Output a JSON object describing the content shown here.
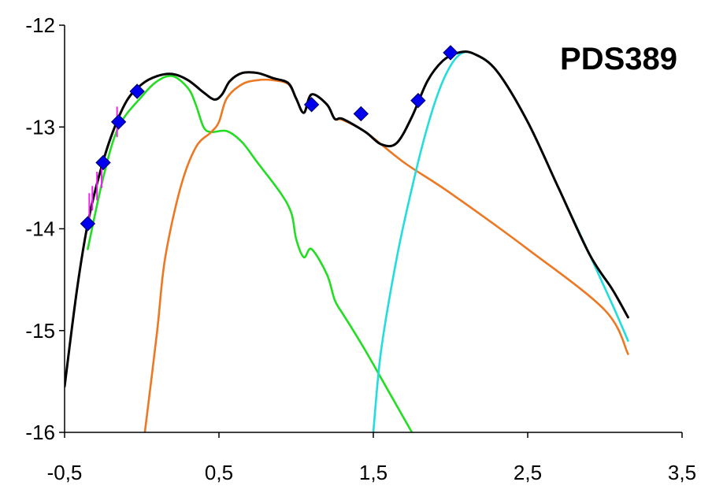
{
  "chart_data": {
    "type": "line",
    "title": "PDS389",
    "xlabel": "",
    "ylabel": "",
    "xlim": [
      -0.5,
      3.5
    ],
    "ylim": [
      -16,
      -12
    ],
    "x_ticks": [
      -0.5,
      0.5,
      1.5,
      2.5,
      3.5
    ],
    "x_tick_labels": [
      "-0,5",
      "0,5",
      "1,5",
      "2,5",
      "3,5"
    ],
    "y_ticks": [
      -12,
      -13,
      -14,
      -15,
      -16
    ],
    "y_tick_labels": [
      "-12",
      "-13",
      "-14",
      "-15",
      "-16"
    ],
    "grid": false,
    "legend": "none",
    "series": [
      {
        "type": "line",
        "color": "#22dd22",
        "points": [
          [
            -0.35,
            -14.2
          ],
          [
            -0.25,
            -13.5
          ],
          [
            -0.15,
            -13.0
          ],
          [
            0.0,
            -12.7
          ],
          [
            0.1,
            -12.55
          ],
          [
            0.2,
            -12.5
          ],
          [
            0.3,
            -12.62
          ],
          [
            0.35,
            -12.78
          ],
          [
            0.4,
            -13.0
          ],
          [
            0.45,
            -13.05
          ],
          [
            0.55,
            -13.04
          ],
          [
            0.65,
            -13.15
          ],
          [
            0.75,
            -13.35
          ],
          [
            0.9,
            -13.65
          ],
          [
            0.97,
            -13.85
          ],
          [
            1.0,
            -14.1
          ],
          [
            1.05,
            -14.28
          ],
          [
            1.1,
            -14.2
          ],
          [
            1.2,
            -14.45
          ],
          [
            1.25,
            -14.7
          ],
          [
            1.3,
            -14.83
          ],
          [
            1.35,
            -14.95
          ],
          [
            1.45,
            -15.2
          ],
          [
            1.6,
            -15.6
          ],
          [
            1.75,
            -16.0
          ]
        ]
      },
      {
        "type": "line",
        "color": "#ee7722",
        "points": [
          [
            0.02,
            -16.0
          ],
          [
            0.1,
            -15.0
          ],
          [
            0.15,
            -14.3
          ],
          [
            0.25,
            -13.6
          ],
          [
            0.35,
            -13.2
          ],
          [
            0.45,
            -13.05
          ],
          [
            0.5,
            -12.95
          ],
          [
            0.55,
            -12.72
          ],
          [
            0.65,
            -12.58
          ],
          [
            0.75,
            -12.54
          ],
          [
            0.85,
            -12.54
          ],
          [
            0.95,
            -12.58
          ],
          [
            1.0,
            -12.72
          ],
          [
            1.05,
            -12.86
          ],
          [
            1.1,
            -12.68
          ],
          [
            1.2,
            -12.78
          ],
          [
            1.25,
            -12.92
          ],
          [
            1.3,
            -12.93
          ],
          [
            1.45,
            -13.05
          ],
          [
            1.7,
            -13.35
          ],
          [
            2.0,
            -13.65
          ],
          [
            2.5,
            -14.2
          ],
          [
            3.0,
            -14.8
          ],
          [
            3.15,
            -15.23
          ]
        ]
      },
      {
        "type": "line",
        "color": "#22dddd",
        "points": [
          [
            1.5,
            -16.0
          ],
          [
            1.55,
            -15.2
          ],
          [
            1.65,
            -14.3
          ],
          [
            1.75,
            -13.6
          ],
          [
            1.85,
            -13.0
          ],
          [
            1.95,
            -12.55
          ],
          [
            2.05,
            -12.3
          ],
          [
            2.15,
            -12.28
          ],
          [
            2.3,
            -12.45
          ],
          [
            2.5,
            -12.95
          ],
          [
            2.7,
            -13.6
          ],
          [
            2.9,
            -14.25
          ],
          [
            3.05,
            -14.75
          ],
          [
            3.15,
            -15.1
          ]
        ]
      },
      {
        "type": "line",
        "color": "#000000",
        "points": [
          [
            -0.5,
            -15.55
          ],
          [
            -0.42,
            -14.6
          ],
          [
            -0.35,
            -13.95
          ],
          [
            -0.28,
            -13.5
          ],
          [
            -0.2,
            -13.1
          ],
          [
            -0.1,
            -12.75
          ],
          [
            0.0,
            -12.58
          ],
          [
            0.1,
            -12.5
          ],
          [
            0.2,
            -12.48
          ],
          [
            0.3,
            -12.54
          ],
          [
            0.4,
            -12.66
          ],
          [
            0.47,
            -12.73
          ],
          [
            0.52,
            -12.68
          ],
          [
            0.57,
            -12.55
          ],
          [
            0.65,
            -12.47
          ],
          [
            0.75,
            -12.47
          ],
          [
            0.85,
            -12.52
          ],
          [
            0.95,
            -12.57
          ],
          [
            1.0,
            -12.72
          ],
          [
            1.05,
            -12.86
          ],
          [
            1.1,
            -12.68
          ],
          [
            1.2,
            -12.78
          ],
          [
            1.25,
            -12.92
          ],
          [
            1.3,
            -12.92
          ],
          [
            1.45,
            -13.05
          ],
          [
            1.55,
            -13.17
          ],
          [
            1.65,
            -13.16
          ],
          [
            1.75,
            -12.9
          ],
          [
            1.85,
            -12.55
          ],
          [
            1.95,
            -12.35
          ],
          [
            2.05,
            -12.27
          ],
          [
            2.15,
            -12.28
          ],
          [
            2.3,
            -12.45
          ],
          [
            2.5,
            -12.95
          ],
          [
            2.7,
            -13.6
          ],
          [
            2.9,
            -14.25
          ],
          [
            3.05,
            -14.6
          ],
          [
            3.15,
            -14.87
          ]
        ]
      },
      {
        "type": "scatter",
        "marker": "diamond",
        "color": "#0000ee",
        "points": [
          [
            -0.35,
            -13.95
          ],
          [
            -0.25,
            -13.35
          ],
          [
            -0.15,
            -12.95
          ],
          [
            -0.03,
            -12.65
          ],
          [
            1.1,
            -12.78
          ],
          [
            1.42,
            -12.87
          ],
          [
            1.79,
            -12.74
          ],
          [
            2.0,
            -12.27
          ]
        ]
      },
      {
        "type": "errorbars",
        "color": "#ee22ee",
        "points": [
          [
            -0.34,
            -13.8,
            0.15
          ],
          [
            -0.32,
            -13.7,
            0.12
          ],
          [
            -0.29,
            -13.58,
            0.14
          ],
          [
            -0.26,
            -13.48,
            0.12
          ],
          [
            -0.16,
            -12.95,
            0.15
          ]
        ]
      }
    ]
  }
}
